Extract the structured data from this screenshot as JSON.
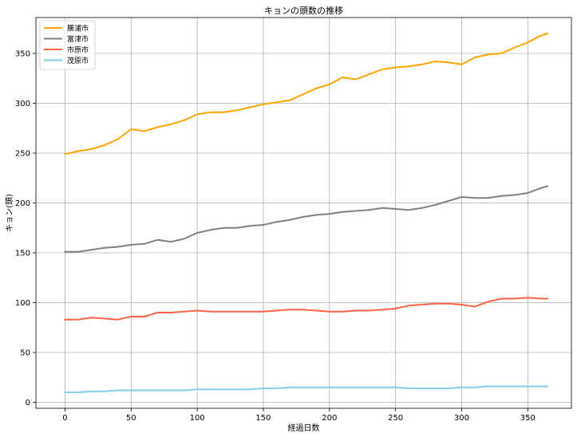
{
  "chart_data": {
    "type": "line",
    "title": "キョンの頭数の推移",
    "xlabel": "経過日数",
    "ylabel": "キョン(頭)",
    "xlim": [
      -22,
      383
    ],
    "ylim": [
      -6,
      386
    ],
    "xticks": [
      0,
      50,
      100,
      150,
      200,
      250,
      300,
      350
    ],
    "yticks": [
      0,
      50,
      100,
      150,
      200,
      250,
      300,
      350
    ],
    "grid": true,
    "legend_position": "top-left",
    "series": [
      {
        "name": "勝浦市",
        "color": "#FFA500",
        "x": [
          0,
          10,
          20,
          30,
          40,
          50,
          60,
          70,
          80,
          90,
          100,
          110,
          120,
          130,
          140,
          150,
          160,
          170,
          180,
          190,
          200,
          210,
          220,
          230,
          240,
          250,
          260,
          270,
          280,
          290,
          300,
          310,
          320,
          330,
          340,
          350,
          360,
          365
        ],
        "y": [
          249,
          252,
          254,
          258,
          264,
          274,
          272,
          276,
          279,
          283,
          289,
          291,
          291,
          293,
          296,
          299,
          301,
          303,
          309,
          315,
          319,
          326,
          324,
          329,
          334,
          336,
          337,
          339,
          342,
          341,
          339,
          346,
          349,
          350,
          356,
          361,
          368,
          370
        ]
      },
      {
        "name": "富津市",
        "color": "#808080",
        "x": [
          0,
          10,
          20,
          30,
          40,
          50,
          60,
          70,
          80,
          90,
          100,
          110,
          120,
          130,
          140,
          150,
          160,
          170,
          180,
          190,
          200,
          210,
          220,
          230,
          240,
          250,
          260,
          270,
          280,
          290,
          300,
          310,
          320,
          330,
          340,
          350,
          360,
          365
        ],
        "y": [
          151,
          151,
          153,
          155,
          156,
          158,
          159,
          163,
          161,
          164,
          170,
          173,
          175,
          175,
          177,
          178,
          181,
          183,
          186,
          188,
          189,
          191,
          192,
          193,
          195,
          194,
          193,
          195,
          198,
          202,
          206,
          205,
          205,
          207,
          208,
          210,
          215,
          217
        ]
      },
      {
        "name": "市原市",
        "color": "#FF6347",
        "x": [
          0,
          10,
          20,
          30,
          40,
          50,
          60,
          70,
          80,
          90,
          100,
          110,
          120,
          130,
          140,
          150,
          160,
          170,
          180,
          190,
          200,
          210,
          220,
          230,
          240,
          250,
          260,
          270,
          280,
          290,
          300,
          310,
          320,
          330,
          340,
          350,
          360,
          365
        ],
        "y": [
          83,
          83,
          85,
          84,
          83,
          86,
          86,
          90,
          90,
          91,
          92,
          91,
          91,
          91,
          91,
          91,
          92,
          93,
          93,
          92,
          91,
          91,
          92,
          92,
          93,
          94,
          97,
          98,
          99,
          99,
          98,
          96,
          101,
          104,
          104,
          105,
          104,
          104
        ]
      },
      {
        "name": "茂原市",
        "color": "#87CEEB",
        "x": [
          0,
          10,
          20,
          30,
          40,
          50,
          60,
          70,
          80,
          90,
          100,
          110,
          120,
          130,
          140,
          150,
          160,
          170,
          180,
          190,
          200,
          210,
          220,
          230,
          240,
          250,
          260,
          270,
          280,
          290,
          300,
          310,
          320,
          330,
          340,
          350,
          360,
          365
        ],
        "y": [
          10,
          10,
          11,
          11,
          12,
          12,
          12,
          12,
          12,
          12,
          13,
          13,
          13,
          13,
          13,
          14,
          14,
          15,
          15,
          15,
          15,
          15,
          15,
          15,
          15,
          15,
          14,
          14,
          14,
          14,
          15,
          15,
          16,
          16,
          16,
          16,
          16,
          16
        ]
      }
    ]
  }
}
